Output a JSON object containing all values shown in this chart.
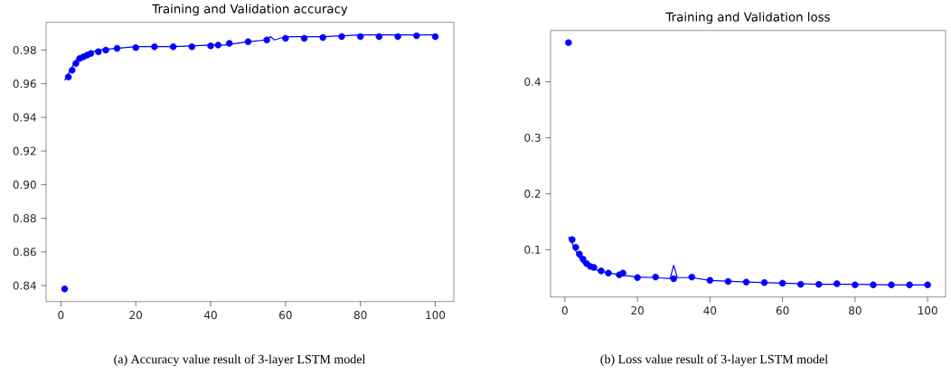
{
  "chart_data": [
    {
      "type": "line",
      "title": "Training and Validation accuracy",
      "xlim": [
        -3.95,
        104.95
      ],
      "ylim": [
        0.8305,
        0.9965
      ],
      "xticks": [
        0,
        20,
        40,
        60,
        80,
        100
      ],
      "yticks": [
        {
          "value": 0.84,
          "label": "0.84"
        },
        {
          "value": 0.86,
          "label": "0.86"
        },
        {
          "value": 0.88,
          "label": "0.88"
        },
        {
          "value": 0.9,
          "label": "0.90"
        },
        {
          "value": 0.92,
          "label": "0.92"
        },
        {
          "value": 0.94,
          "label": "0.94"
        },
        {
          "value": 0.96,
          "label": "0.96"
        },
        {
          "value": 0.98,
          "label": "0.98"
        }
      ],
      "annotations": [
        "(a)  Accuracy value result of 3-layer LSTM model"
      ],
      "series": [
        {
          "type": "scatter",
          "marker": "circle",
          "color": "#0000ff",
          "x": [
            1,
            2,
            3,
            4,
            5,
            6,
            7,
            8,
            10,
            12,
            15,
            20,
            25,
            30,
            35,
            40,
            42,
            45,
            50,
            55,
            60,
            65,
            70,
            75,
            80,
            85,
            90,
            95,
            100
          ],
          "values": [
            0.838,
            0.964,
            0.968,
            0.972,
            0.975,
            0.976,
            0.977,
            0.978,
            0.979,
            0.98,
            0.981,
            0.9815,
            0.982,
            0.982,
            0.982,
            0.9825,
            0.983,
            0.984,
            0.985,
            0.986,
            0.987,
            0.987,
            0.9875,
            0.988,
            0.988,
            0.988,
            0.988,
            0.9885,
            0.988
          ]
        },
        {
          "color": "#0000ff",
          "x": [
            1,
            2,
            3,
            4,
            5,
            7,
            10,
            15,
            20,
            30,
            40,
            44,
            50,
            55,
            56,
            57,
            60,
            70,
            80,
            90,
            100
          ],
          "values": [
            0.962,
            0.966,
            0.97,
            0.974,
            0.976,
            0.978,
            0.98,
            0.981,
            0.982,
            0.982,
            0.983,
            0.983,
            0.985,
            0.986,
            0.988,
            0.986,
            0.988,
            0.988,
            0.989,
            0.989,
            0.989
          ]
        }
      ]
    },
    {
      "type": "line",
      "title": "Training and Validation loss",
      "xlim": [
        -3.95,
        104.95
      ],
      "ylim": [
        0.0153,
        0.4917
      ],
      "xticks": [
        0,
        20,
        40,
        60,
        80,
        100
      ],
      "yticks": [
        0.1,
        0.2,
        0.3,
        0.4
      ],
      "annotations": [
        "(b)  Loss value result of 3-layer LSTM model"
      ],
      "series": [
        {
          "type": "scatter",
          "marker": "circle",
          "color": "#0000ff",
          "x": [
            1,
            2,
            3,
            4,
            5,
            6,
            7,
            8,
            10,
            12,
            15,
            16,
            20,
            25,
            30,
            35,
            40,
            45,
            50,
            55,
            60,
            65,
            70,
            75,
            80,
            85,
            90,
            95,
            100
          ],
          "values": [
            0.47,
            0.118,
            0.104,
            0.092,
            0.083,
            0.075,
            0.07,
            0.068,
            0.062,
            0.058,
            0.055,
            0.058,
            0.05,
            0.051,
            0.048,
            0.051,
            0.045,
            0.043,
            0.042,
            0.041,
            0.04,
            0.038,
            0.038,
            0.039,
            0.037,
            0.037,
            0.037,
            0.037,
            0.037
          ]
        },
        {
          "color": "#0000ff",
          "x": [
            1,
            2,
            3,
            4,
            5,
            7,
            10,
            15,
            20,
            25,
            29,
            30,
            31,
            35,
            40,
            50,
            60,
            70,
            80,
            90,
            100
          ],
          "values": [
            0.123,
            0.112,
            0.098,
            0.086,
            0.076,
            0.068,
            0.061,
            0.055,
            0.051,
            0.05,
            0.048,
            0.072,
            0.05,
            0.05,
            0.045,
            0.042,
            0.04,
            0.038,
            0.038,
            0.037,
            0.037
          ]
        }
      ]
    }
  ]
}
